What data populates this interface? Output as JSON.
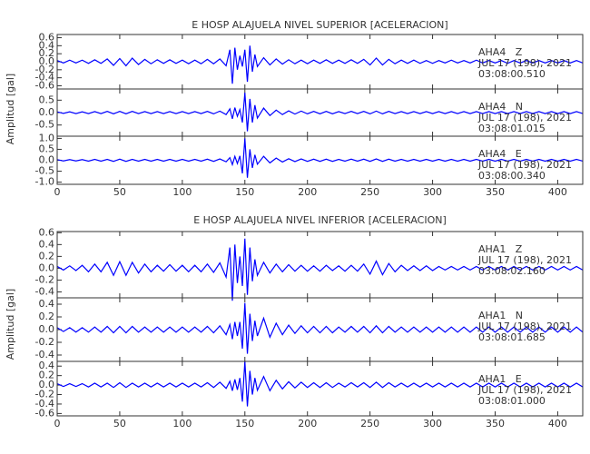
{
  "chart_data": [
    {
      "type": "line",
      "title": "E HOSP ALAJUELA NIVEL SUPERIOR [ACELERACION]",
      "ylabel": "Amplitud [gal]",
      "xlim": [
        0,
        420
      ],
      "xticks": [
        0,
        50,
        100,
        150,
        200,
        250,
        300,
        350,
        400
      ],
      "x": [
        0,
        5,
        10,
        15,
        20,
        25,
        30,
        35,
        40,
        45,
        50,
        55,
        60,
        65,
        70,
        75,
        80,
        85,
        90,
        95,
        100,
        105,
        110,
        115,
        120,
        125,
        130,
        135,
        138,
        140,
        142,
        144,
        146,
        148,
        150,
        152,
        154,
        156,
        158,
        160,
        165,
        170,
        175,
        180,
        185,
        190,
        195,
        200,
        205,
        210,
        215,
        220,
        225,
        230,
        235,
        240,
        245,
        250,
        255,
        260,
        265,
        270,
        275,
        280,
        285,
        290,
        295,
        300,
        305,
        310,
        315,
        320,
        325,
        330,
        335,
        340,
        345,
        350,
        355,
        360,
        365,
        370,
        375,
        380,
        385,
        390,
        395,
        400,
        405,
        410,
        415,
        420
      ],
      "series": [
        {
          "name": "AHA4   Z",
          "date": "JUL 17 (198), 2021",
          "time": "03:08:00.510",
          "color": "#0000ff",
          "ylim": [
            -0.68,
            0.68
          ],
          "yticks": [
            -0.6,
            -0.4,
            -0.2,
            {
              "value": 0,
              "label": "0.0"
            },
            0.2,
            0.4,
            0.6
          ],
          "values": [
            0.03,
            0.03,
            0.04,
            0.03,
            0.04,
            0.04,
            0.05,
            0.04,
            0.07,
            0.09,
            0.08,
            0.1,
            0.09,
            0.07,
            0.06,
            0.05,
            0.05,
            0.04,
            0.05,
            0.04,
            0.04,
            0.05,
            0.04,
            0.05,
            0.06,
            0.05,
            0.07,
            0.1,
            0.3,
            0.55,
            0.35,
            0.2,
            0.15,
            0.12,
            0.3,
            0.5,
            0.4,
            0.25,
            0.18,
            0.12,
            0.1,
            0.08,
            0.07,
            0.06,
            0.05,
            0.05,
            0.04,
            0.05,
            0.04,
            0.04,
            0.05,
            0.04,
            0.04,
            0.04,
            0.05,
            0.04,
            0.06,
            0.08,
            0.09,
            0.08,
            0.06,
            0.05,
            0.04,
            0.04,
            0.04,
            0.04,
            0.03,
            0.04,
            0.03,
            0.03,
            0.04,
            0.03,
            0.03,
            0.03,
            0.04,
            0.03,
            0.03,
            0.03,
            0.03,
            0.04,
            0.03,
            0.03,
            0.03,
            0.03,
            0.03,
            0.03,
            0.03,
            0.03,
            0.03,
            0.03,
            0.03,
            0.03
          ]
        },
        {
          "name": "AHA4   N",
          "date": "JUL 17 (198), 2021",
          "time": "03:08:01.015",
          "color": "#0000ff",
          "ylim": [
            -0.95,
            0.95
          ],
          "yticks": [
            -0.5,
            {
              "value": 0,
              "label": "0.0"
            },
            0.5
          ],
          "values": [
            0.03,
            0.03,
            0.03,
            0.04,
            0.03,
            0.04,
            0.04,
            0.04,
            0.05,
            0.05,
            0.05,
            0.05,
            0.05,
            0.04,
            0.04,
            0.04,
            0.04,
            0.04,
            0.04,
            0.04,
            0.04,
            0.04,
            0.04,
            0.04,
            0.05,
            0.05,
            0.06,
            0.08,
            0.15,
            0.25,
            0.2,
            0.15,
            0.12,
            0.4,
            0.8,
            0.75,
            0.55,
            0.4,
            0.3,
            0.22,
            0.18,
            0.12,
            0.1,
            0.08,
            0.07,
            0.06,
            0.06,
            0.05,
            0.05,
            0.05,
            0.05,
            0.05,
            0.04,
            0.04,
            0.05,
            0.04,
            0.05,
            0.05,
            0.06,
            0.05,
            0.05,
            0.04,
            0.04,
            0.04,
            0.04,
            0.04,
            0.04,
            0.04,
            0.04,
            0.04,
            0.04,
            0.04,
            0.04,
            0.04,
            0.04,
            0.04,
            0.04,
            0.04,
            0.04,
            0.04,
            0.04,
            0.04,
            0.04,
            0.04,
            0.04,
            0.04,
            0.04,
            0.04,
            0.04,
            0.04,
            0.04,
            0.04
          ]
        },
        {
          "name": "AHA4   E",
          "date": "JUL 17 (198), 2021",
          "time": "03:08:00.340",
          "color": "#0000ff",
          "ylim": [
            -1.1,
            1.1
          ],
          "yticks": [
            {
              "value": -1,
              "label": "-1.0"
            },
            -0.5,
            {
              "value": 0,
              "label": "0.0"
            },
            0.5,
            {
              "value": 1,
              "label": "1.0"
            }
          ],
          "values": [
            0.03,
            0.03,
            0.03,
            0.03,
            0.03,
            0.04,
            0.04,
            0.04,
            0.04,
            0.05,
            0.05,
            0.05,
            0.04,
            0.04,
            0.04,
            0.04,
            0.04,
            0.04,
            0.04,
            0.04,
            0.04,
            0.04,
            0.04,
            0.04,
            0.05,
            0.05,
            0.06,
            0.07,
            0.12,
            0.2,
            0.18,
            0.15,
            0.2,
            0.6,
            1.0,
            0.8,
            0.5,
            0.35,
            0.25,
            0.18,
            0.18,
            0.12,
            0.1,
            0.08,
            0.07,
            0.06,
            0.06,
            0.05,
            0.05,
            0.05,
            0.05,
            0.05,
            0.04,
            0.04,
            0.05,
            0.04,
            0.05,
            0.05,
            0.06,
            0.05,
            0.05,
            0.04,
            0.04,
            0.04,
            0.04,
            0.04,
            0.04,
            0.04,
            0.04,
            0.04,
            0.04,
            0.04,
            0.04,
            0.04,
            0.04,
            0.04,
            0.04,
            0.04,
            0.04,
            0.04,
            0.04,
            0.04,
            0.04,
            0.04,
            0.04,
            0.04,
            0.04,
            0.04,
            0.04,
            0.04,
            0.04,
            0.04
          ]
        }
      ]
    },
    {
      "type": "line",
      "title": "E HOSP ALAJUELA NIVEL INFERIOR [ACELERACION]",
      "ylabel": "Amplitud [gal]",
      "xlim": [
        0,
        420
      ],
      "xticks": [
        0,
        50,
        100,
        150,
        200,
        250,
        300,
        350,
        400
      ],
      "x": [
        0,
        5,
        10,
        15,
        20,
        25,
        30,
        35,
        40,
        45,
        50,
        55,
        60,
        65,
        70,
        75,
        80,
        85,
        90,
        95,
        100,
        105,
        110,
        115,
        120,
        125,
        130,
        135,
        138,
        140,
        142,
        144,
        146,
        148,
        150,
        152,
        154,
        156,
        158,
        160,
        165,
        170,
        175,
        180,
        185,
        190,
        195,
        200,
        205,
        210,
        215,
        220,
        225,
        230,
        235,
        240,
        245,
        250,
        255,
        260,
        265,
        270,
        275,
        280,
        285,
        290,
        295,
        300,
        305,
        310,
        315,
        320,
        325,
        330,
        335,
        340,
        345,
        350,
        355,
        360,
        365,
        370,
        375,
        380,
        385,
        390,
        395,
        400,
        405,
        410,
        415,
        420
      ],
      "series": [
        {
          "name": "AHA1   Z",
          "date": "JUL 17 (198), 2021",
          "time": "03:08:02.160",
          "color": "#0000ff",
          "ylim": [
            -0.5,
            0.62
          ],
          "yticks": [
            -0.4,
            -0.2,
            {
              "value": 0,
              "label": "0.0"
            },
            0.2,
            0.4,
            0.6
          ],
          "values": [
            0.03,
            0.03,
            0.04,
            0.04,
            0.05,
            0.06,
            0.07,
            0.06,
            0.1,
            0.12,
            0.11,
            0.12,
            0.1,
            0.08,
            0.07,
            0.06,
            0.05,
            0.05,
            0.06,
            0.05,
            0.05,
            0.06,
            0.05,
            0.06,
            0.07,
            0.07,
            0.09,
            0.15,
            0.35,
            0.55,
            0.4,
            0.25,
            0.2,
            0.3,
            0.5,
            0.45,
            0.35,
            0.22,
            0.15,
            0.12,
            0.1,
            0.08,
            0.07,
            0.06,
            0.06,
            0.05,
            0.05,
            0.05,
            0.04,
            0.05,
            0.05,
            0.04,
            0.04,
            0.05,
            0.05,
            0.05,
            0.07,
            0.1,
            0.12,
            0.11,
            0.08,
            0.06,
            0.05,
            0.04,
            0.04,
            0.04,
            0.04,
            0.04,
            0.03,
            0.03,
            0.03,
            0.03,
            0.03,
            0.03,
            0.03,
            0.03,
            0.03,
            0.03,
            0.03,
            0.03,
            0.03,
            0.03,
            0.03,
            0.03,
            0.03,
            0.03,
            0.03,
            0.03,
            0.03,
            0.03,
            0.03,
            0.03
          ]
        },
        {
          "name": "AHA1   N",
          "date": "JUL 17 (198), 2021",
          "time": "03:08:01.685",
          "color": "#0000ff",
          "ylim": [
            -0.5,
            0.5
          ],
          "yticks": [
            -0.4,
            -0.2,
            {
              "value": 0,
              "label": "0.0"
            },
            0.2,
            0.4
          ],
          "values": [
            0.03,
            0.03,
            0.03,
            0.04,
            0.03,
            0.04,
            0.04,
            0.04,
            0.05,
            0.05,
            0.05,
            0.05,
            0.05,
            0.04,
            0.04,
            0.04,
            0.04,
            0.04,
            0.04,
            0.04,
            0.04,
            0.04,
            0.04,
            0.04,
            0.05,
            0.05,
            0.06,
            0.08,
            0.08,
            0.15,
            0.12,
            0.1,
            0.12,
            0.3,
            0.42,
            0.38,
            0.25,
            0.18,
            0.14,
            0.1,
            0.18,
            0.12,
            0.1,
            0.08,
            0.07,
            0.06,
            0.06,
            0.05,
            0.05,
            0.05,
            0.05,
            0.05,
            0.04,
            0.04,
            0.05,
            0.04,
            0.05,
            0.05,
            0.06,
            0.05,
            0.05,
            0.04,
            0.04,
            0.04,
            0.04,
            0.04,
            0.04,
            0.04,
            0.04,
            0.04,
            0.04,
            0.04,
            0.04,
            0.04,
            0.04,
            0.04,
            0.04,
            0.04,
            0.04,
            0.04,
            0.04,
            0.04,
            0.04,
            0.04,
            0.04,
            0.04,
            0.04,
            0.04,
            0.04,
            0.04,
            0.04,
            0.04
          ]
        },
        {
          "name": "AHA1   E",
          "date": "JUL 17 (198), 2021",
          "time": "03:08:01.000",
          "color": "#0000ff",
          "ylim": [
            -0.65,
            0.5
          ],
          "yticks": [
            -0.6,
            -0.4,
            -0.2,
            {
              "value": 0,
              "label": "0.0"
            },
            0.2,
            0.4
          ],
          "values": [
            0.03,
            0.03,
            0.03,
            0.03,
            0.03,
            0.04,
            0.04,
            0.04,
            0.04,
            0.05,
            0.05,
            0.05,
            0.04,
            0.04,
            0.04,
            0.04,
            0.04,
            0.04,
            0.04,
            0.04,
            0.04,
            0.04,
            0.04,
            0.04,
            0.05,
            0.05,
            0.06,
            0.07,
            0.08,
            0.12,
            0.12,
            0.1,
            0.15,
            0.35,
            0.5,
            0.45,
            0.3,
            0.2,
            0.15,
            0.11,
            0.18,
            0.12,
            0.1,
            0.08,
            0.07,
            0.06,
            0.06,
            0.05,
            0.05,
            0.05,
            0.05,
            0.05,
            0.04,
            0.04,
            0.05,
            0.04,
            0.05,
            0.05,
            0.06,
            0.05,
            0.05,
            0.04,
            0.04,
            0.04,
            0.04,
            0.04,
            0.04,
            0.04,
            0.04,
            0.04,
            0.04,
            0.04,
            0.04,
            0.04,
            0.04,
            0.04,
            0.04,
            0.04,
            0.04,
            0.04,
            0.04,
            0.04,
            0.04,
            0.04,
            0.04,
            0.04,
            0.04,
            0.04,
            0.04,
            0.04,
            0.04,
            0.04
          ]
        }
      ]
    }
  ]
}
